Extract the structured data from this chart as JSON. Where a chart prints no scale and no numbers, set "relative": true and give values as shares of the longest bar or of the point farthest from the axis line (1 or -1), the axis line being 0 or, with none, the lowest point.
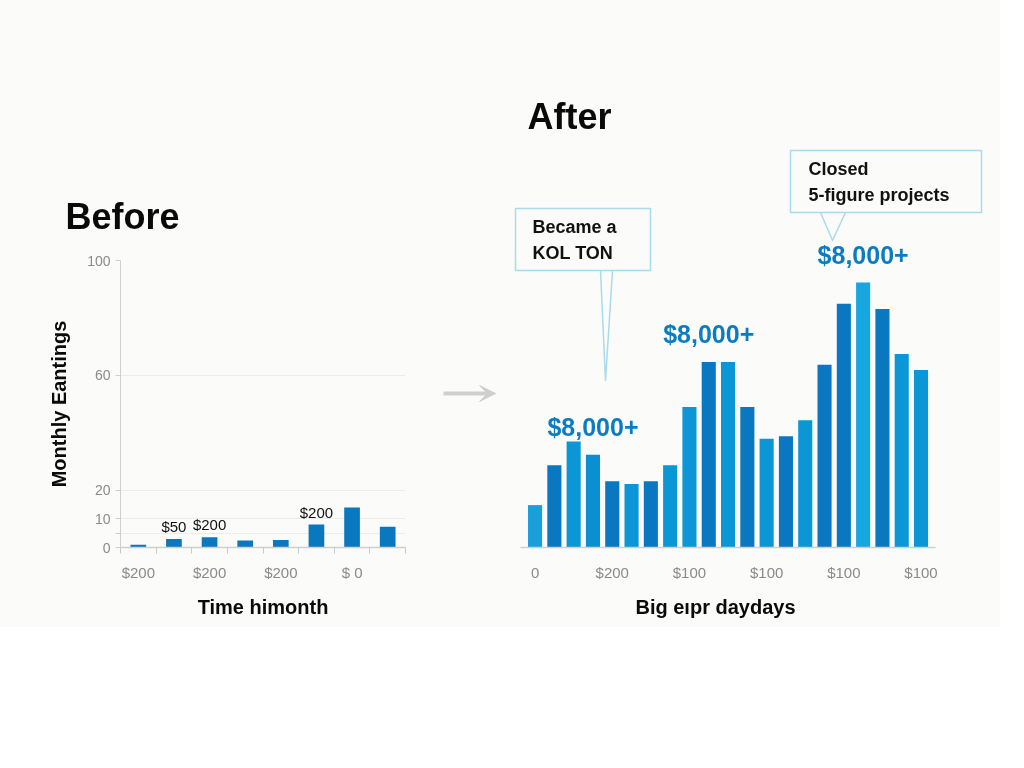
{
  "chart_data": [
    {
      "type": "bar",
      "title": "Before",
      "ylabel": "Monthly Eantings",
      "xlabel": "Time himonth",
      "categories": [
        "$200",
        null,
        "$200",
        null,
        "$200",
        null,
        "$ 0",
        null
      ],
      "values": [
        1.0,
        3.0,
        3.6,
        2.4,
        2.6,
        8.0,
        13.9,
        7.2
      ],
      "color": "#0a78be",
      "annotations": [
        {
          "text": "$50",
          "y": 3.0
        },
        {
          "text": "$200",
          "y": 3.6
        },
        {
          "text": "$200",
          "y": 8.0
        }
      ],
      "ylim": [
        0,
        100
      ],
      "yticks": [
        0,
        {
          "value": 5,
          "label": null
        },
        10,
        20,
        60,
        100
      ],
      "grid": "y"
    },
    {
      "type": "bar",
      "title": "After",
      "xlabel": "Big eıpr daydays",
      "relative": true,
      "categories": [
        "0",
        null,
        null,
        null,
        "$200",
        null,
        null,
        null,
        "$100",
        null,
        null,
        null,
        "$100",
        null,
        null,
        null,
        "$100",
        null,
        null,
        null,
        "$100"
      ],
      "values": [
        0.16,
        0.31,
        0.4,
        0.35,
        0.25,
        0.24,
        0.25,
        0.31,
        0.53,
        0.7,
        0.7,
        0.53,
        0.41,
        0.42,
        0.48,
        0.69,
        0.92,
        1.0,
        0.9,
        0.73,
        0.67
      ],
      "colors": [
        "#1a9fdb",
        "#0a78c0",
        "#0b97d6",
        "#0a8fd0",
        "#0a78c0",
        "#0b97d6",
        "#0a78c0",
        "#0b97d6",
        "#0b97d6",
        "#0a78c0",
        "#0b97d6",
        "#0a78c0",
        "#0b97d6",
        "#0a78c0",
        "#0b97d6",
        "#0a78c0",
        "#0a78c0",
        "#17a6e0",
        "#0a78c0",
        "#0b97d6",
        "#0b97d6"
      ],
      "annotations": [
        {
          "text": "$8,000+",
          "y": 0.35
        },
        {
          "text": "$8,000+",
          "y": 0.7
        },
        {
          "text": "$8,000+",
          "y": 1.0
        },
        "Became a\nKOL TON",
        "Closed\n5-figure projects"
      ]
    }
  ]
}
